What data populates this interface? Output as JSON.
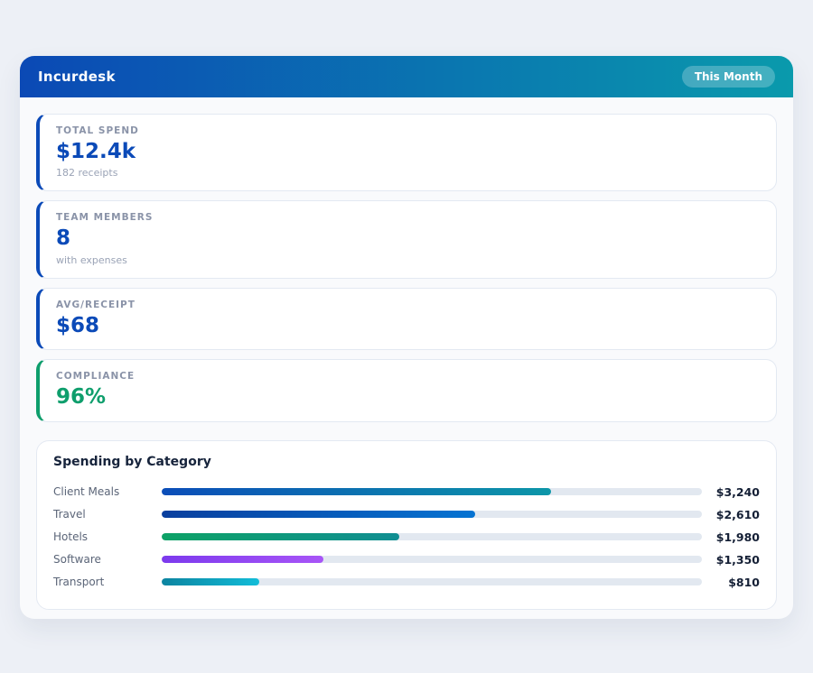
{
  "header": {
    "app_title": "Incurdesk",
    "period_badge": "This Month",
    "gradient": [
      "#0b49b5",
      "#0a9aac"
    ]
  },
  "stats": [
    {
      "label": "TOTAL SPEND",
      "value": "$12.4k",
      "sub": "182 receipts",
      "accent": "#0b4ab8"
    },
    {
      "label": "TEAM MEMBERS",
      "value": "8",
      "sub": "with expenses",
      "accent": "#0b4ab8"
    },
    {
      "label": "AVG/RECEIPT",
      "value": "$68",
      "sub": "",
      "accent": "#0b4ab8"
    },
    {
      "label": "COMPLIANCE",
      "value": "96%",
      "sub": "",
      "accent": "#0e9e6c"
    }
  ],
  "chart_data": {
    "type": "bar",
    "orientation": "horizontal",
    "title": "Spending by Category",
    "categories": [
      "Client Meals",
      "Travel",
      "Hotels",
      "Software",
      "Transport"
    ],
    "values": [
      3240,
      2610,
      1980,
      1350,
      810
    ],
    "value_labels": [
      "$3,240",
      "$2,610",
      "$1,980",
      "$1,350",
      "$810"
    ],
    "scale_max": 4500,
    "track_color": "#e2e8f0",
    "bar_colors": [
      [
        "#0b4db8",
        "#0d96a8"
      ],
      [
        "#0a3f9e",
        "#0573d2"
      ],
      [
        "#0da266",
        "#108e92"
      ],
      [
        "#7c3aed",
        "#a855f7"
      ],
      [
        "#0c84a0",
        "#12bcd8"
      ]
    ]
  }
}
